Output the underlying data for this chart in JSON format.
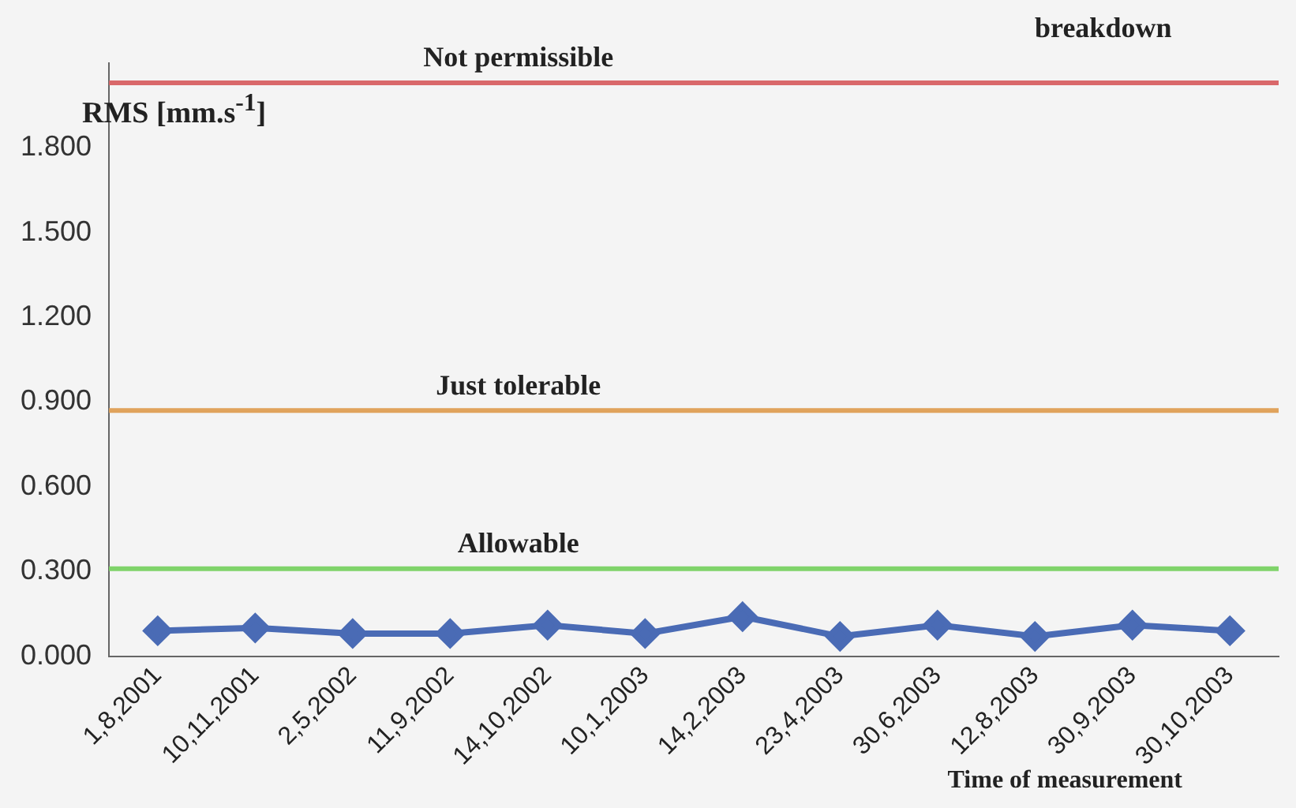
{
  "chart_data": {
    "type": "line",
    "xlabel": "Time of measurement",
    "ylabel": "RMS [mm.s$^{-1}$]",
    "categories": [
      "1,8,2001",
      "10,11,2001",
      "2,5,2002",
      "11,9,2002",
      "14,10,2002",
      "10,1,2003",
      "14,2,2003",
      "23,4,2003",
      "30,6,2003",
      "12,8,2003",
      "30,9,2003",
      "30,10,2003"
    ],
    "series": [
      {
        "color": "#4a6bb5",
        "values": [
          0.09,
          0.1,
          0.08,
          0.08,
          0.11,
          0.08,
          0.14,
          0.07,
          0.11,
          0.07,
          0.11,
          0.09
        ]
      }
    ],
    "ylim": [
      0,
      2.1
    ],
    "yticks": [
      {
        "value": 0,
        "label": "0.000"
      },
      {
        "value": 0.3,
        "label": "0.300"
      },
      {
        "value": 0.6,
        "label": "0.600"
      },
      {
        "value": 0.9,
        "label": "0.900"
      },
      {
        "value": 1.2,
        "label": "1.200"
      },
      {
        "value": 1.5,
        "label": "1.500"
      },
      {
        "value": 1.8,
        "label": "1.800"
      }
    ],
    "ref_lines": [
      {
        "axis": "y",
        "value": 2.03,
        "label": "Not permissible",
        "color": "#d9686a"
      },
      {
        "axis": "y",
        "value": 0.87,
        "label": "Just tolerable",
        "color": "#e0a35c"
      },
      {
        "axis": "y",
        "value": 0.31,
        "label": "Allowable",
        "color": "#7fd36a"
      }
    ],
    "annotations": [
      "breakdown"
    ],
    "marker": "diamond",
    "grid": false,
    "legend": false
  }
}
